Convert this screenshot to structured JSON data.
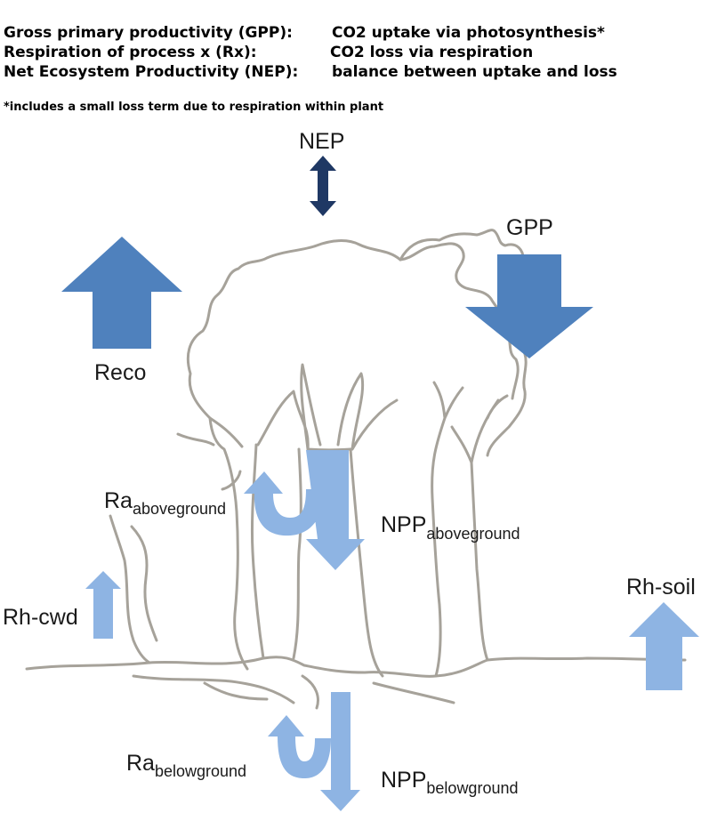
{
  "definitions": [
    {
      "term": "Gross primary productivity (GPP):",
      "description": "CO2 uptake via photosynthesis*"
    },
    {
      "term": "Respiration of process x (Rx):",
      "description": "CO2 loss via respiration"
    },
    {
      "term": "Net Ecosystem Productivity (NEP):",
      "description": "balance between uptake and loss"
    }
  ],
  "footnote": "*includes a small loss term due to respiration within plant",
  "labels": {
    "nep": "NEP",
    "gpp": "GPP",
    "reco": "Reco",
    "ra_above_main": "Ra",
    "ra_above_sub": "aboveground",
    "npp_above_main": "NPP",
    "npp_above_sub": "aboveground",
    "rh_cwd": "Rh-cwd",
    "rh_soil": "Rh-soil",
    "ra_below_main": "Ra",
    "ra_below_sub": "belowground",
    "npp_below_main": "NPP",
    "npp_below_sub": "belowground"
  },
  "colors": {
    "dark_arrow": "#1f3864",
    "medium_arrow": "#4f81bd",
    "light_arrow": "#8eb4e3",
    "tree_outline": "#a6a29a"
  }
}
